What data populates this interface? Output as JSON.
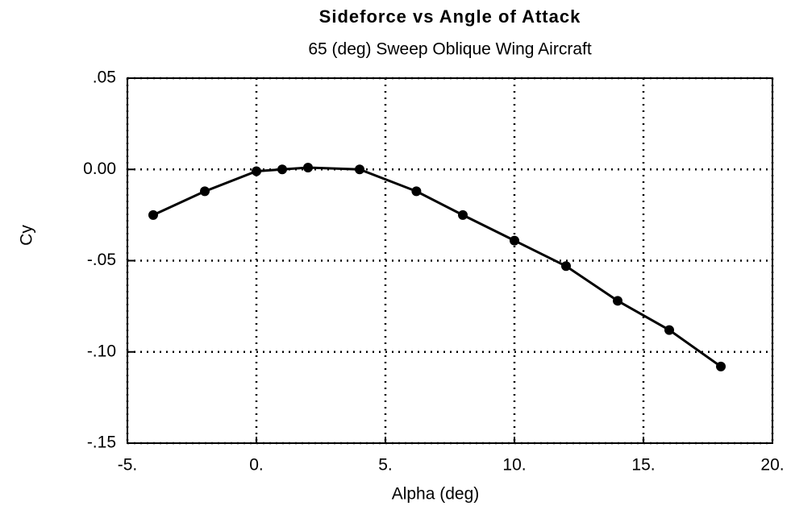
{
  "chart_data": {
    "type": "line",
    "title": "Sideforce vs Angle of Attack",
    "subtitle": "65 (deg) Sweep Oblique Wing Aircraft",
    "x_label": "Alpha (deg)",
    "y_label": "Cy",
    "x": [
      -4,
      -2,
      0,
      1,
      2,
      4,
      6.2,
      8,
      10,
      12,
      14,
      16,
      18
    ],
    "series": [
      {
        "color": "#000000",
        "values": [
          -0.025,
          -0.012,
          -0.001,
          0,
          0.001,
          0,
          -0.012,
          -0.025,
          -0.039,
          -0.053,
          -0.072,
          -0.088,
          -0.108
        ]
      }
    ],
    "xlim": [
      -5,
      20
    ],
    "ylim": [
      -0.15,
      0.05
    ],
    "xticks": [
      {
        "value": -5,
        "label": "-5."
      },
      {
        "value": 0,
        "label": "0."
      },
      {
        "value": 5,
        "label": "5."
      },
      {
        "value": 10,
        "label": "10."
      },
      {
        "value": 15,
        "label": "15."
      },
      {
        "value": 20,
        "label": "20."
      }
    ],
    "yticks": [
      {
        "value": 0.05,
        "label": ".05"
      },
      {
        "value": 0,
        "label": "0.00"
      },
      {
        "value": -0.05,
        "label": "-.05"
      },
      {
        "value": -0.1,
        "label": "-.10"
      },
      {
        "value": -0.15,
        "label": "-.15"
      }
    ],
    "grid": true
  }
}
